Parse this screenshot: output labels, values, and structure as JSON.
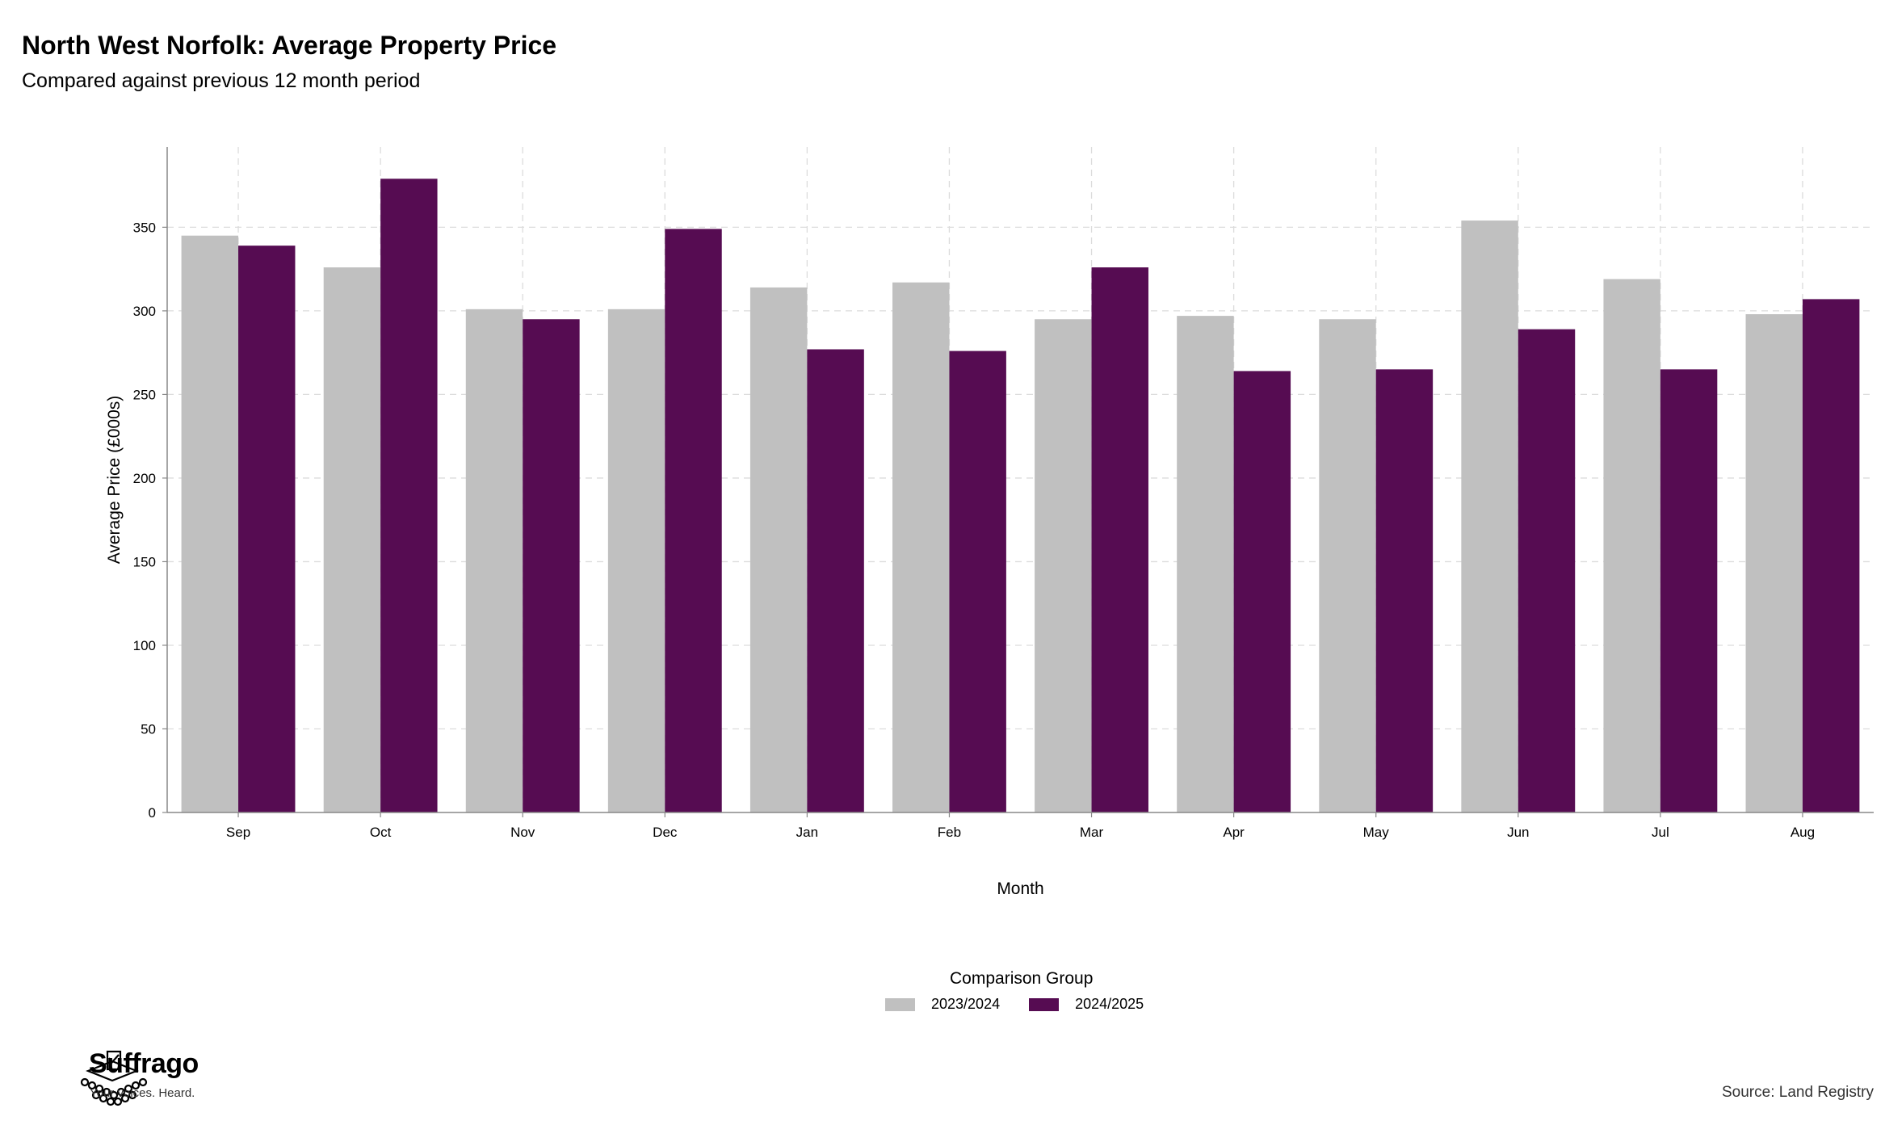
{
  "header": {
    "title": "North West Norfolk: Average Property Price",
    "subtitle": "Compared against previous 12 month period"
  },
  "chart_data": {
    "type": "bar",
    "title": "North West Norfolk: Average Property Price",
    "subtitle": "Compared against previous 12 month period",
    "xlabel": "Month",
    "ylabel": "Average Price (£000s)",
    "ylim": [
      0,
      398
    ],
    "yticks": [
      0,
      50,
      100,
      150,
      200,
      250,
      300,
      350
    ],
    "grid": true,
    "legend_title": "Comparison Group",
    "legend_position": "bottom",
    "categories": [
      "Sep",
      "Oct",
      "Nov",
      "Dec",
      "Jan",
      "Feb",
      "Mar",
      "Apr",
      "May",
      "Jun",
      "Jul",
      "Aug"
    ],
    "series": [
      {
        "name": "2023/2024",
        "color": "#c0c0c0",
        "values": [
          345,
          326,
          301,
          301,
          314,
          317,
          295,
          297,
          295,
          354,
          319,
          298
        ]
      },
      {
        "name": "2024/2025",
        "color": "#560c52",
        "values": [
          339,
          379,
          295,
          349,
          277,
          276,
          326,
          264,
          265,
          289,
          265,
          307
        ]
      }
    ]
  },
  "legend": {
    "title": "Comparison Group",
    "items": [
      {
        "label": "2023/2024",
        "color": "#c0c0c0"
      },
      {
        "label": "2024/2025",
        "color": "#560c52"
      }
    ]
  },
  "footer": {
    "brand": "Suffrago",
    "tagline": "Your voices. Heard.",
    "source": "Source: Land Registry"
  }
}
